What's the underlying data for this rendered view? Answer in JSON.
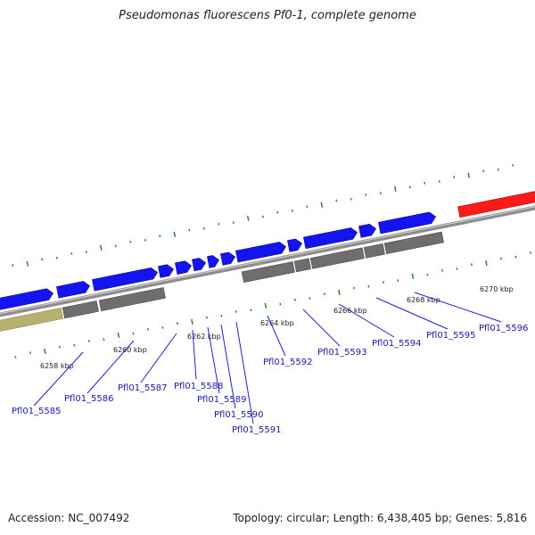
{
  "title": "Pseudomonas fluorescens Pf0-1, complete genome",
  "footer": {
    "accession": "Accession: NC_007492",
    "summary": "Topology: circular; Length: 6,438,405 bp; Genes: 5,816"
  },
  "colors": {
    "forward_gene": "#1414f0",
    "reverse_gene": "#6e6e6e",
    "highlight_gene": "#ff1a1a",
    "other_feature": "#b8b070",
    "backbone": "#8c8c8c",
    "tick": "#2a8a2a",
    "label": "#1a1aa8"
  },
  "ticks": [
    {
      "label": "6258 kbp"
    },
    {
      "label": "6260 kbp"
    },
    {
      "label": "6262 kbp"
    },
    {
      "label": "6264 kbp"
    },
    {
      "label": "6266 kbp"
    },
    {
      "label": "6268 kbp"
    },
    {
      "label": "6270 kbp"
    }
  ],
  "genes": [
    {
      "name": "Pfl01_5585"
    },
    {
      "name": "Pfl01_5586"
    },
    {
      "name": "Pfl01_5587"
    },
    {
      "name": "Pfl01_5588"
    },
    {
      "name": "Pfl01_5589"
    },
    {
      "name": "Pfl01_5590"
    },
    {
      "name": "Pfl01_5591"
    },
    {
      "name": "Pfl01_5592"
    },
    {
      "name": "Pfl01_5593"
    },
    {
      "name": "Pfl01_5594"
    },
    {
      "name": "Pfl01_5595"
    },
    {
      "name": "Pfl01_5596"
    }
  ]
}
